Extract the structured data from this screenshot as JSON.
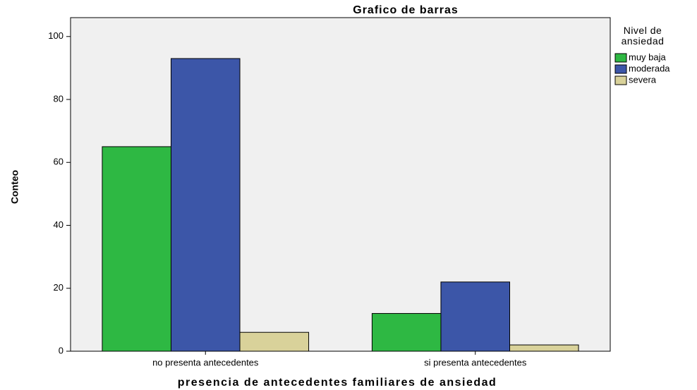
{
  "chart_data": {
    "type": "bar",
    "title": "Grafico de barras",
    "x_label": "presencia de antecedentes familiares de ansiedad",
    "y_label": "Conteo",
    "legend_title": "Nivel de ansiedad",
    "categories": [
      "no presenta antecedentes",
      "si presenta antecedentes"
    ],
    "series": [
      {
        "name": "muy baja",
        "color": "#2eb843",
        "values": [
          65,
          12
        ]
      },
      {
        "name": "moderada",
        "color": "#3c56a8",
        "values": [
          93,
          22
        ]
      },
      {
        "name": "severa",
        "color": "#d9d29a",
        "values": [
          6,
          2
        ]
      }
    ],
    "ylim": [
      0,
      106
    ],
    "yticks": [
      0,
      20,
      40,
      60,
      80,
      100
    ],
    "grid": false,
    "legend": "right"
  }
}
